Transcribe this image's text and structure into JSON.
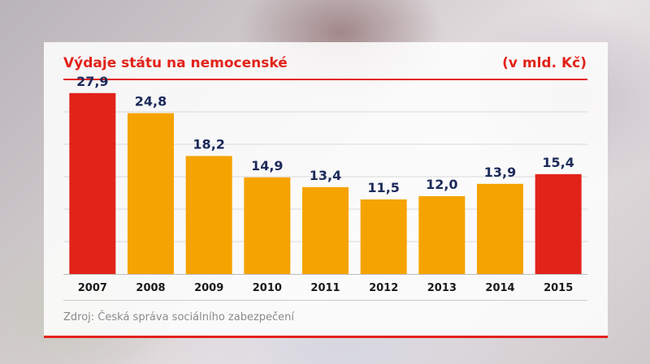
{
  "chart_data": {
    "type": "bar",
    "title": "Výdaje státu na nemocenské",
    "unit": "(v mld. Kč)",
    "categories": [
      "2007",
      "2008",
      "2009",
      "2010",
      "2011",
      "2012",
      "2013",
      "2014",
      "2015"
    ],
    "values": [
      27.9,
      24.8,
      18.2,
      14.9,
      13.4,
      11.5,
      12.0,
      13.9,
      15.4
    ],
    "value_labels": [
      "27,9",
      "24,8",
      "18,2",
      "14,9",
      "13,4",
      "11,5",
      "12,0",
      "13,9",
      "15,4"
    ],
    "highlight": [
      "2007",
      "2015"
    ],
    "ylim": [
      0,
      30
    ],
    "grid": true,
    "colors": {
      "highlight": "#e2231a",
      "bar": "#f5a300",
      "label": "#1c2a5a",
      "grid": "#d9d9d9"
    }
  },
  "source": "Zdroj: Česká správa sociálního zabezpečení"
}
